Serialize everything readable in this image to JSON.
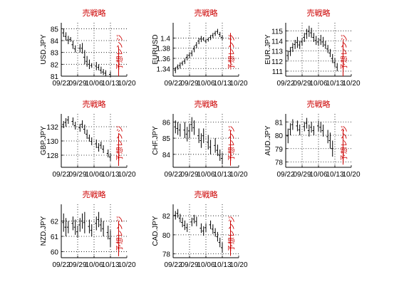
{
  "colors": {
    "title": "#cc0000",
    "annotation": "#cc0000",
    "bars": "#000000",
    "grid": "#000000"
  },
  "chart_data": [
    {
      "type": "ohlc",
      "title": "売戦略",
      "ylabel": "USD.JPY",
      "ylim": [
        81,
        85.5
      ],
      "yticks": [
        81,
        82,
        83,
        84,
        85
      ],
      "xtick_labels": [
        "09/22",
        "09/29",
        "10/06",
        "10/13",
        "10/20"
      ],
      "xlim": [
        0,
        28
      ],
      "grid": true,
      "annotation": "予想レンジ",
      "annotation_range": [
        80.5,
        83.5
      ],
      "bars": [
        [
          1,
          85.0,
          84.3
        ],
        [
          2,
          84.7,
          84.0
        ],
        [
          3,
          84.4,
          83.7
        ],
        [
          4,
          84.3,
          83.9
        ],
        [
          5,
          84.0,
          83.3
        ],
        [
          6,
          83.6,
          83.0
        ],
        [
          8,
          83.7,
          83.0
        ],
        [
          9,
          83.8,
          82.9
        ],
        [
          10,
          83.2,
          82.0
        ],
        [
          11,
          82.7,
          81.8
        ],
        [
          12,
          82.4,
          81.6
        ],
        [
          13,
          82.1,
          81.7
        ],
        [
          15,
          82.2,
          81.5
        ],
        [
          16,
          82.0,
          81.5
        ],
        [
          17,
          81.8,
          81.2
        ],
        [
          18,
          81.6,
          81.1
        ],
        [
          19,
          81.5,
          81.0
        ],
        [
          21,
          81.4,
          80.9
        ]
      ]
    },
    {
      "type": "ohlc",
      "title": "売戦略",
      "ylabel": "EURUSD",
      "ylim": [
        1.325,
        1.43
      ],
      "yticks": [
        1.34,
        1.36,
        1.38,
        1.4
      ],
      "xtick_labels": [
        "09/22",
        "09/29",
        "10/06",
        "10/13",
        "10/20"
      ],
      "xlim": [
        0,
        28
      ],
      "grid": true,
      "annotation": "予想レンジ",
      "annotation_range": [
        1.35,
        1.41
      ],
      "bars": [
        [
          1,
          1.343,
          1.331
        ],
        [
          2,
          1.348,
          1.338
        ],
        [
          3,
          1.352,
          1.34
        ],
        [
          4,
          1.355,
          1.346
        ],
        [
          5,
          1.36,
          1.349
        ],
        [
          6,
          1.368,
          1.356
        ],
        [
          7,
          1.372,
          1.36
        ],
        [
          8,
          1.376,
          1.364
        ],
        [
          9,
          1.385,
          1.372
        ],
        [
          10,
          1.392,
          1.38
        ],
        [
          11,
          1.4,
          1.388
        ],
        [
          12,
          1.404,
          1.392
        ],
        [
          13,
          1.402,
          1.394
        ],
        [
          14,
          1.398,
          1.39
        ],
        [
          15,
          1.401,
          1.393
        ],
        [
          16,
          1.406,
          1.396
        ],
        [
          17,
          1.41,
          1.4
        ],
        [
          18,
          1.414,
          1.404
        ],
        [
          19,
          1.418,
          1.408
        ],
        [
          20,
          1.412,
          1.402
        ],
        [
          21,
          1.406,
          1.396
        ]
      ]
    },
    {
      "type": "ohlc",
      "title": "売戦略",
      "ylabel": "EUR.JPY",
      "ylim": [
        110.5,
        115.8
      ],
      "yticks": [
        111,
        112,
        113,
        114,
        115
      ],
      "xtick_labels": [
        "09/22",
        "09/29",
        "10/06",
        "10/13",
        "10/20"
      ],
      "xlim": [
        0,
        28
      ],
      "grid": true,
      "annotation": "予想レンジ",
      "annotation_range": [
        110.5,
        114.0
      ],
      "bars": [
        [
          1,
          113.0,
          112.1
        ],
        [
          2,
          113.4,
          112.5
        ],
        [
          3,
          113.8,
          112.9
        ],
        [
          4,
          114.1,
          113.2
        ],
        [
          5,
          114.4,
          113.3
        ],
        [
          6,
          114.0,
          113.2
        ],
        [
          7,
          114.3,
          113.5
        ],
        [
          8,
          114.8,
          113.9
        ],
        [
          9,
          115.2,
          114.2
        ],
        [
          10,
          115.5,
          114.4
        ],
        [
          11,
          115.3,
          114.3
        ],
        [
          12,
          114.8,
          113.9
        ],
        [
          13,
          114.5,
          113.6
        ],
        [
          14,
          114.3,
          113.5
        ],
        [
          15,
          114.6,
          113.6
        ],
        [
          16,
          114.4,
          113.4
        ],
        [
          17,
          114.0,
          113.2
        ],
        [
          18,
          113.6,
          112.8
        ],
        [
          19,
          113.2,
          112.4
        ],
        [
          20,
          112.7,
          111.8
        ],
        [
          21,
          112.3,
          111.4
        ],
        [
          22,
          111.8,
          111.0
        ]
      ]
    },
    {
      "type": "ohlc",
      "title": "売戦略",
      "ylabel": "GBP.JPY",
      "ylim": [
        126.3,
        133.8
      ],
      "yticks": [
        128,
        130,
        132
      ],
      "xtick_labels": [
        "09/22",
        "09/29",
        "10/06",
        "10/13",
        "10/20"
      ],
      "xlim": [
        0,
        28
      ],
      "grid": true,
      "annotation": "予想レンジ",
      "annotation_range": [
        126.5,
        131.0
      ],
      "bars": [
        [
          1,
          132.8,
          131.8
        ],
        [
          2,
          133.2,
          132.0
        ],
        [
          3,
          133.5,
          132.4
        ],
        [
          5,
          133.3,
          132.2
        ],
        [
          6,
          132.7,
          131.6
        ],
        [
          8,
          132.4,
          131.3
        ],
        [
          9,
          132.9,
          131.8
        ],
        [
          10,
          132.3,
          131.0
        ],
        [
          11,
          131.6,
          130.3
        ],
        [
          12,
          130.9,
          129.9
        ],
        [
          13,
          130.5,
          129.4
        ],
        [
          15,
          130.2,
          129.0
        ],
        [
          16,
          129.7,
          128.5
        ],
        [
          17,
          129.9,
          128.9
        ],
        [
          18,
          129.4,
          128.3
        ],
        [
          20,
          128.8,
          127.7
        ],
        [
          21,
          128.3,
          127.2
        ]
      ]
    },
    {
      "type": "ohlc",
      "title": "売戦略",
      "ylabel": "CHF.JPY",
      "ylim": [
        83.2,
        86.5
      ],
      "yticks": [
        84,
        85,
        86
      ],
      "xtick_labels": [
        "09/22",
        "09/29",
        "10/06",
        "10/13",
        "10/20"
      ],
      "xlim": [
        0,
        28
      ],
      "grid": true,
      "annotation": "予想レンジ",
      "annotation_range": [
        83.3,
        85.5
      ],
      "bars": [
        [
          1,
          86.1,
          85.3
        ],
        [
          2,
          86.0,
          85.2
        ],
        [
          3,
          85.9,
          85.1
        ],
        [
          5,
          86.0,
          85.0
        ],
        [
          6,
          85.7,
          84.8
        ],
        [
          7,
          85.9,
          85.0
        ],
        [
          8,
          86.3,
          85.4
        ],
        [
          9,
          86.1,
          85.2
        ],
        [
          11,
          85.6,
          84.7
        ],
        [
          12,
          85.3,
          84.4
        ],
        [
          13,
          85.6,
          84.7
        ],
        [
          15,
          85.2,
          84.3
        ],
        [
          16,
          84.9,
          84.0
        ],
        [
          18,
          85.0,
          84.1
        ],
        [
          19,
          84.6,
          83.9
        ],
        [
          20,
          84.3,
          83.6
        ],
        [
          21,
          84.1,
          83.4
        ]
      ]
    },
    {
      "type": "ohlc",
      "title": "売戦略",
      "ylabel": "AUD.JPY",
      "ylim": [
        77.6,
        81.6
      ],
      "yticks": [
        78,
        79,
        80,
        81
      ],
      "xtick_labels": [
        "09/22",
        "09/29",
        "10/06",
        "10/13",
        "10/20"
      ],
      "xlim": [
        0,
        28
      ],
      "grid": true,
      "annotation": "予想レンジ",
      "annotation_range": [
        77.8,
        80.5
      ],
      "bars": [
        [
          1,
          80.5,
          79.4
        ],
        [
          2,
          80.9,
          80.0
        ],
        [
          3,
          81.2,
          80.4
        ],
        [
          5,
          81.1,
          80.3
        ],
        [
          6,
          80.8,
          80.0
        ],
        [
          8,
          81.0,
          80.3
        ],
        [
          9,
          81.3,
          80.5
        ],
        [
          10,
          80.8,
          79.9
        ],
        [
          11,
          81.0,
          80.2
        ],
        [
          12,
          80.7,
          80.0
        ],
        [
          14,
          81.1,
          80.3
        ],
        [
          15,
          81.0,
          80.2
        ],
        [
          16,
          80.8,
          79.9
        ],
        [
          18,
          80.4,
          79.4
        ],
        [
          19,
          80.2,
          79.0
        ],
        [
          20,
          79.6,
          78.4
        ]
      ]
    },
    {
      "type": "ohlc",
      "title": "売戦略",
      "ylabel": "NZD.JPY",
      "ylim": [
        59.6,
        63.1
      ],
      "yticks": [
        60,
        61,
        62
      ],
      "xtick_labels": [
        "09/22",
        "09/29",
        "10/06",
        "10/13",
        "10/20"
      ],
      "xlim": [
        0,
        28
      ],
      "grid": true,
      "annotation": "予想レンジ",
      "annotation_range": [
        59.7,
        62.0
      ],
      "bars": [
        [
          1,
          62.5,
          61.3
        ],
        [
          2,
          62.2,
          61.0
        ],
        [
          3,
          62.0,
          61.2
        ],
        [
          5,
          62.3,
          61.4
        ],
        [
          6,
          62.1,
          61.1
        ],
        [
          7,
          61.7,
          60.9
        ],
        [
          8,
          62.2,
          61.3
        ],
        [
          9,
          62.5,
          61.5
        ],
        [
          10,
          62.6,
          61.2
        ],
        [
          12,
          62.1,
          61.2
        ],
        [
          13,
          61.8,
          61.0
        ],
        [
          15,
          62.3,
          61.4
        ],
        [
          16,
          62.6,
          61.6
        ],
        [
          17,
          62.2,
          61.3
        ],
        [
          18,
          62.0,
          61.0
        ],
        [
          20,
          61.7,
          60.8
        ],
        [
          21,
          61.4,
          60.3
        ]
      ]
    },
    {
      "type": "ohlc",
      "title": "売戦略",
      "ylabel": "CAD.JPY",
      "ylim": [
        77.6,
        83.2
      ],
      "yticks": [
        78,
        80,
        82
      ],
      "xtick_labels": [
        "09/22",
        "09/29",
        "10/06",
        "10/13",
        "10/20"
      ],
      "xlim": [
        0,
        28
      ],
      "grid": true,
      "annotation": "予想レンジ",
      "annotation_range": [
        77.8,
        81.5
      ],
      "bars": [
        [
          1,
          82.5,
          81.6
        ],
        [
          2,
          82.7,
          81.8
        ],
        [
          3,
          82.2,
          81.3
        ],
        [
          4,
          81.8,
          80.8
        ],
        [
          5,
          81.5,
          80.5
        ],
        [
          6,
          81.2,
          80.3
        ],
        [
          8,
          81.8,
          80.9
        ],
        [
          9,
          82.1,
          81.2
        ],
        [
          10,
          81.9,
          80.9
        ],
        [
          12,
          81.2,
          80.2
        ],
        [
          13,
          80.9,
          79.9
        ],
        [
          14,
          81.2,
          80.3
        ],
        [
          16,
          81.5,
          80.6
        ],
        [
          17,
          81.1,
          80.1
        ],
        [
          18,
          80.7,
          79.8
        ],
        [
          19,
          80.3,
          79.3
        ],
        [
          20,
          79.7,
          78.7
        ],
        [
          21,
          79.2,
          78.1
        ]
      ]
    }
  ]
}
